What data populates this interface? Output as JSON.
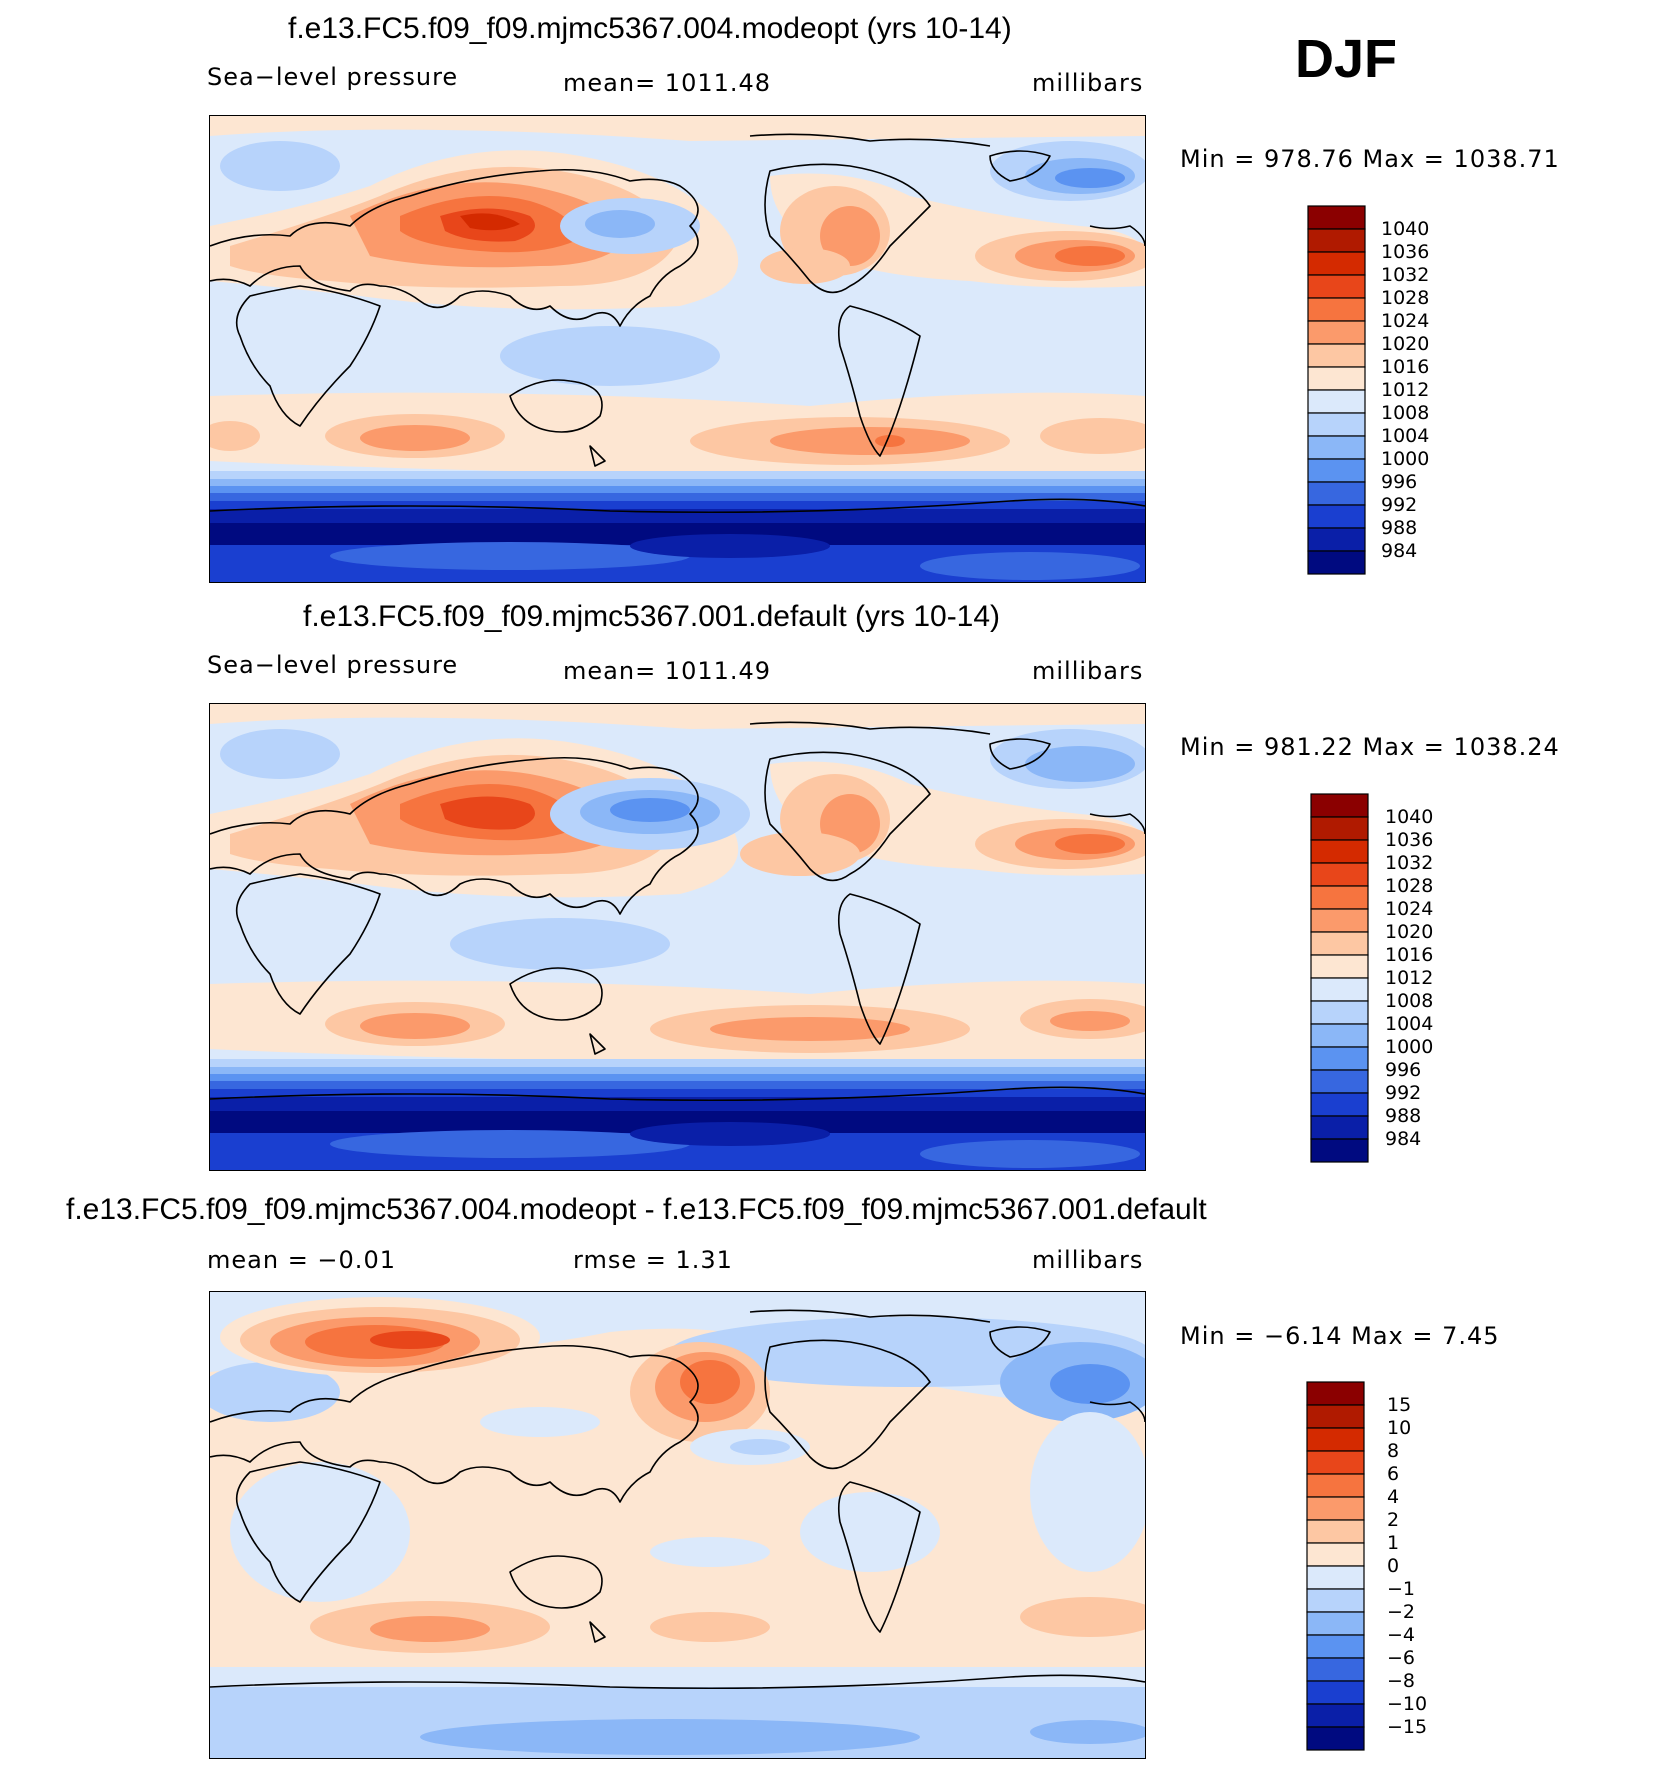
{
  "season": "DJF",
  "panels": [
    {
      "title": "f.e13.FC5.f09_f09.mjmc5367.004.modeopt (yrs 10-14)",
      "left_label": "Sea−level pressure",
      "center_label": "mean=  1011.48",
      "right_label": "millibars",
      "stats": "Min  =  978.76  Max  =  1038.71",
      "colorbar": {
        "labels": [
          "1040",
          "1036",
          "1032",
          "1028",
          "1024",
          "1020",
          "1016",
          "1012",
          "1008",
          "1004",
          "1000",
          "996",
          "992",
          "988",
          "984"
        ],
        "colors": [
          "#8b0000",
          "#b01a00",
          "#d42a00",
          "#e8461a",
          "#f6743f",
          "#fb9a6b",
          "#fdc7a3",
          "#fde6d2",
          "#dbe9fb",
          "#b7d3fb",
          "#8bb7f7",
          "#5b93f1",
          "#3767e0",
          "#1a3fd0",
          "#0a1fa8",
          "#000a80"
        ]
      },
      "map_fields": {
        "high": "siberia_na",
        "low": "antarctic"
      }
    },
    {
      "title": "f.e13.FC5.f09_f09.mjmc5367.001.default (yrs 10-14)",
      "left_label": "Sea−level pressure",
      "center_label": "mean=  1011.49",
      "right_label": "millibars",
      "stats": "Min  =  981.22  Max  =  1038.24",
      "colorbar": {
        "labels": [
          "1040",
          "1036",
          "1032",
          "1028",
          "1024",
          "1020",
          "1016",
          "1012",
          "1008",
          "1004",
          "1000",
          "996",
          "992",
          "988",
          "984"
        ],
        "colors": [
          "#8b0000",
          "#b01a00",
          "#d42a00",
          "#e8461a",
          "#f6743f",
          "#fb9a6b",
          "#fdc7a3",
          "#fde6d2",
          "#dbe9fb",
          "#b7d3fb",
          "#8bb7f7",
          "#5b93f1",
          "#3767e0",
          "#1a3fd0",
          "#0a1fa8",
          "#000a80"
        ]
      }
    },
    {
      "title": "f.e13.FC5.f09_f09.mjmc5367.004.modeopt - f.e13.FC5.f09_f09.mjmc5367.001.default",
      "left_label": "mean  =    −0.01",
      "center_label": "rmse  =      1.31",
      "right_label": "millibars",
      "stats": "Min  =    −6.14  Max  =      7.45",
      "colorbar": {
        "labels": [
          "15",
          "10",
          "8",
          "6",
          "4",
          "2",
          "1",
          "0",
          "−1",
          "−2",
          "−4",
          "−6",
          "−8",
          "−10",
          "−15"
        ],
        "colors": [
          "#8b0000",
          "#b01a00",
          "#d42a00",
          "#e8461a",
          "#f6743f",
          "#fb9a6b",
          "#fdc7a3",
          "#fde6d2",
          "#dbe9fb",
          "#b7d3fb",
          "#8bb7f7",
          "#5b93f1",
          "#3767e0",
          "#1a3fd0",
          "#0a1fa8",
          "#000a80"
        ]
      }
    }
  ]
}
